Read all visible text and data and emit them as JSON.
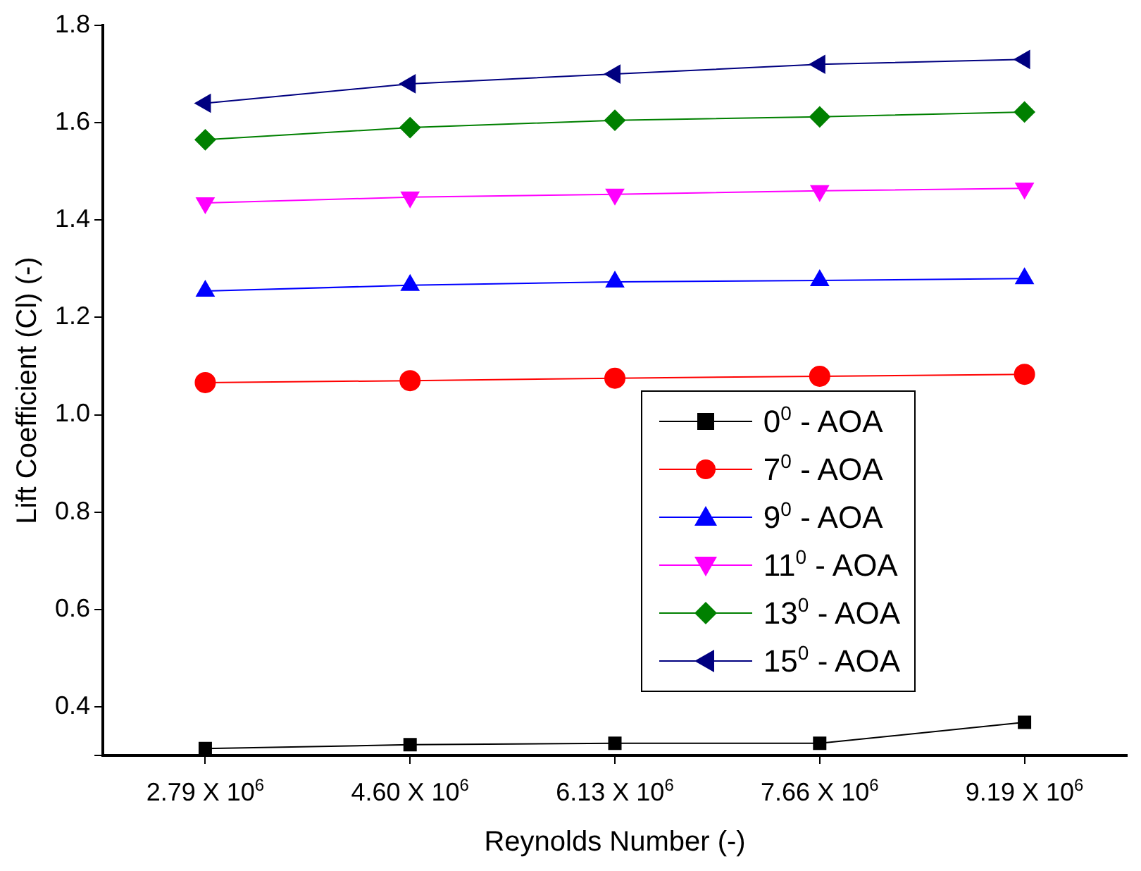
{
  "chart_data": {
    "type": "line",
    "xlabel": "Reynolds Number (-)",
    "ylabel": "Lift Coefficient (Cl) (-)",
    "categories": [
      "2.79 X 10$^{6}$",
      "4.60 X 10$^{6}$",
      "6.13 X 10$^{6}$",
      "7.66 X 10$^{6}$",
      "9.19 X 10$^{6}$"
    ],
    "ylim": [
      0.3,
      1.8
    ],
    "yticks": [
      {
        "value": 0.3,
        "label": null
      },
      0.4,
      0.6,
      0.8,
      {
        "value": 1.0,
        "label": "1.0"
      },
      1.2,
      1.4,
      1.6,
      1.8
    ],
    "grid": false,
    "legend": "bottom right",
    "line_style": "solid",
    "series": [
      {
        "name": "0$^{0}$ - AOA",
        "color": "#000000",
        "marker": "square",
        "values": [
          0.314,
          0.322,
          0.325,
          0.325,
          0.368
        ]
      },
      {
        "name": "7$^{0}$ - AOA",
        "color": "#ff0000",
        "marker": "circle",
        "values": [
          1.066,
          1.07,
          1.075,
          1.079,
          1.083
        ]
      },
      {
        "name": "9$^{0}$ - AOA",
        "color": "#0000ff",
        "marker": "triangle",
        "values": [
          1.254,
          1.266,
          1.273,
          1.276,
          1.28
        ]
      },
      {
        "name": "11$^{0}$ - AOA",
        "color": "#ff00ff",
        "marker": "triangle-down",
        "values": [
          1.435,
          1.447,
          1.453,
          1.46,
          1.465
        ]
      },
      {
        "name": "13$^{0}$ - AOA",
        "color": "#008000",
        "marker": "diamond",
        "values": [
          1.565,
          1.59,
          1.605,
          1.612,
          1.622
        ]
      },
      {
        "name": "15$^{0}$ - AOA",
        "color": "#000080",
        "marker": "triangle-left",
        "values": [
          1.64,
          1.68,
          1.7,
          1.72,
          1.73
        ]
      }
    ]
  }
}
